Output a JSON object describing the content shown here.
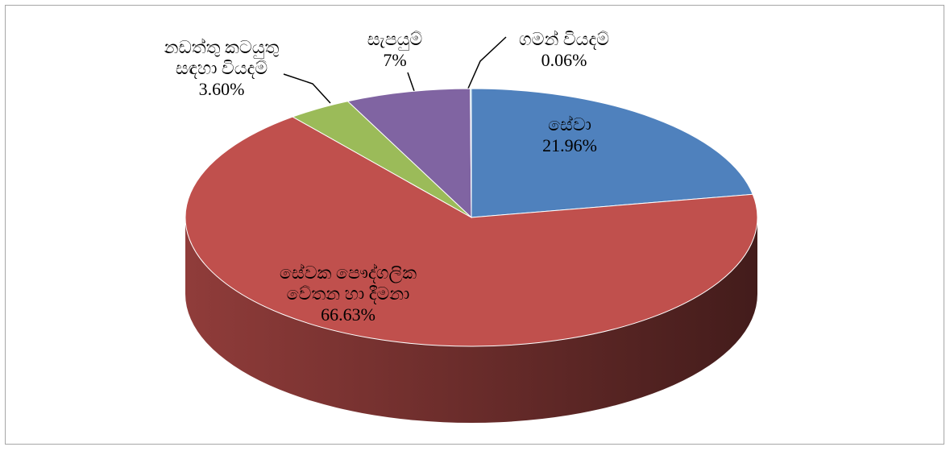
{
  "chart_data": {
    "type": "pie",
    "categories": [
      "සේවා",
      "සේවක පෞද්ගලික\nවේතන හා දීමනා",
      "නඩත්තු කටයුතු\nසඳහා වියදම්",
      "සැපයුම්",
      "ගමන් වියදම්"
    ],
    "values": [
      21.96,
      66.63,
      3.6,
      7,
      0.06
    ],
    "value_labels": [
      "21.96%",
      "66.63%",
      "3.60%",
      "7%",
      "0.06%"
    ],
    "colors": [
      "#4f81bd",
      "#c0504d",
      "#9bbb59",
      "#8064a2",
      "#4bacc6"
    ]
  }
}
